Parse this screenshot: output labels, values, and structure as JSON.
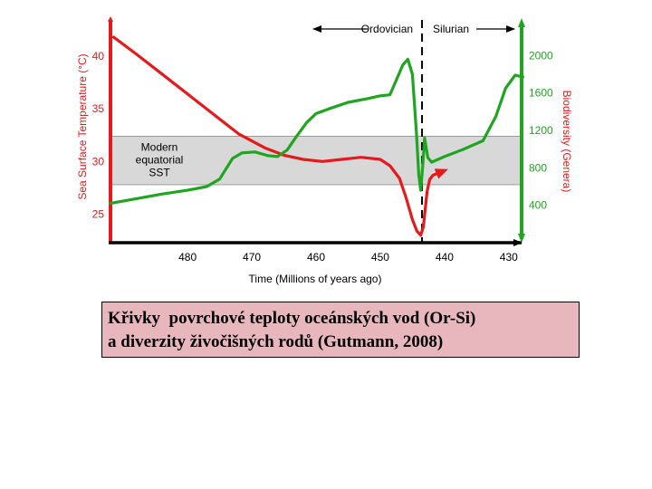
{
  "chart_data": {
    "type": "line",
    "xlabel": "Time (Millions of years ago)",
    "x_ticks": [
      480,
      470,
      460,
      450,
      440,
      430
    ],
    "xlim": [
      492,
      428
    ],
    "y_left": {
      "label": "Sea Surface Temperature (°C)",
      "ticks": [
        25,
        30,
        35,
        40
      ],
      "range": [
        22.3,
        43.6
      ],
      "color": "#e41a1c"
    },
    "y_right": {
      "label": "Biodiversity (Genera)",
      "ticks": [
        400,
        800,
        1200,
        1600,
        2000
      ],
      "range": [
        0,
        2400
      ],
      "color": "#1fa51f"
    },
    "band": {
      "label_lines": [
        "Modern",
        "equatorial",
        "SST"
      ],
      "range": [
        27.8,
        32.4
      ]
    },
    "boundary": {
      "x": 443.5,
      "left_label": "Ordovician",
      "right_label": "Silurian"
    },
    "series": [
      {
        "axis": "left",
        "color": "#e41a1c",
        "points": [
          [
            491.5,
            41.8
          ],
          [
            488,
            40.2
          ],
          [
            484,
            38.3
          ],
          [
            480,
            36.4
          ],
          [
            476,
            34.5
          ],
          [
            472,
            32.6
          ],
          [
            468,
            31.3
          ],
          [
            465,
            30.6
          ],
          [
            462,
            30.2
          ],
          [
            459,
            30.0
          ],
          [
            456,
            30.2
          ],
          [
            453,
            30.4
          ],
          [
            450,
            30.2
          ],
          [
            448.5,
            29.6
          ],
          [
            447,
            28.4
          ],
          [
            446,
            26.6
          ],
          [
            445,
            24.5
          ],
          [
            444.3,
            23.4
          ],
          [
            443.7,
            23.0
          ],
          [
            443.3,
            23.8
          ],
          [
            443,
            25.5
          ],
          [
            442.7,
            27.2
          ],
          [
            442.3,
            28.3
          ],
          [
            441.8,
            28.7
          ],
          [
            441,
            28.9
          ]
        ]
      },
      {
        "axis": "right",
        "color": "#1fa51f",
        "points": [
          [
            492,
            420
          ],
          [
            488,
            470
          ],
          [
            484,
            520
          ],
          [
            480,
            560
          ],
          [
            477,
            600
          ],
          [
            475,
            680
          ],
          [
            473,
            900
          ],
          [
            471.5,
            960
          ],
          [
            469.5,
            970
          ],
          [
            467.5,
            930
          ],
          [
            466,
            920
          ],
          [
            464.5,
            990
          ],
          [
            463,
            1140
          ],
          [
            461.5,
            1280
          ],
          [
            460,
            1380
          ],
          [
            458,
            1430
          ],
          [
            455,
            1500
          ],
          [
            452,
            1540
          ],
          [
            450,
            1570
          ],
          [
            448.5,
            1580
          ],
          [
            447.5,
            1740
          ],
          [
            446.5,
            1900
          ],
          [
            445.7,
            1960
          ],
          [
            445,
            1800
          ],
          [
            444.4,
            1200
          ],
          [
            444,
            720
          ],
          [
            443.7,
            560
          ],
          [
            443.4,
            820
          ],
          [
            443.1,
            1120
          ],
          [
            442.6,
            910
          ],
          [
            442,
            860
          ],
          [
            440,
            920
          ],
          [
            437,
            1000
          ],
          [
            434,
            1090
          ],
          [
            432,
            1350
          ],
          [
            430.5,
            1650
          ],
          [
            429,
            1790
          ],
          [
            427.8,
            1770
          ]
        ]
      }
    ]
  }
}
